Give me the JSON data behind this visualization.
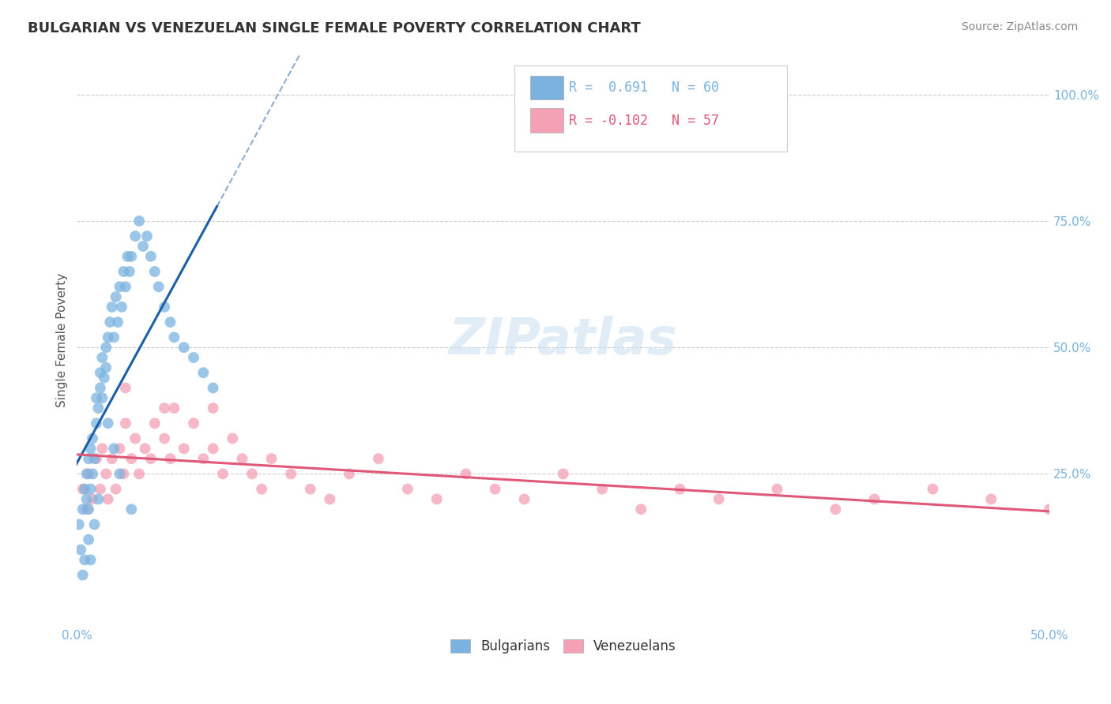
{
  "title": "BULGARIAN VS VENEZUELAN SINGLE FEMALE POVERTY CORRELATION CHART",
  "source": "Source: ZipAtlas.com",
  "ylabel": "Single Female Poverty",
  "xlim": [
    0.0,
    0.5
  ],
  "ylim": [
    -0.05,
    1.08
  ],
  "bg_color": "#ffffff",
  "grid_color": "#cccccc",
  "blue_color": "#7ab3e0",
  "pink_color": "#f4a0b5",
  "blue_line_color": "#1a5fa8",
  "pink_line_color": "#e05878",
  "legend_R1": "R =  0.691",
  "legend_N1": "N = 60",
  "legend_R2": "R = -0.102",
  "legend_N2": "N = 57",
  "bulgarian_points_x": [
    0.001,
    0.002,
    0.003,
    0.004,
    0.005,
    0.005,
    0.006,
    0.006,
    0.007,
    0.007,
    0.008,
    0.008,
    0.009,
    0.01,
    0.01,
    0.011,
    0.012,
    0.012,
    0.013,
    0.013,
    0.014,
    0.015,
    0.015,
    0.016,
    0.017,
    0.018,
    0.019,
    0.02,
    0.021,
    0.022,
    0.023,
    0.024,
    0.025,
    0.026,
    0.027,
    0.028,
    0.03,
    0.032,
    0.034,
    0.036,
    0.038,
    0.04,
    0.042,
    0.045,
    0.048,
    0.05,
    0.055,
    0.06,
    0.065,
    0.07,
    0.003,
    0.004,
    0.006,
    0.007,
    0.009,
    0.011,
    0.016,
    0.019,
    0.022,
    0.028
  ],
  "bulgarian_points_y": [
    0.15,
    0.1,
    0.18,
    0.22,
    0.2,
    0.25,
    0.18,
    0.28,
    0.22,
    0.3,
    0.25,
    0.32,
    0.28,
    0.35,
    0.4,
    0.38,
    0.42,
    0.45,
    0.4,
    0.48,
    0.44,
    0.5,
    0.46,
    0.52,
    0.55,
    0.58,
    0.52,
    0.6,
    0.55,
    0.62,
    0.58,
    0.65,
    0.62,
    0.68,
    0.65,
    0.68,
    0.72,
    0.75,
    0.7,
    0.72,
    0.68,
    0.65,
    0.62,
    0.58,
    0.55,
    0.52,
    0.5,
    0.48,
    0.45,
    0.42,
    0.05,
    0.08,
    0.12,
    0.08,
    0.15,
    0.2,
    0.35,
    0.3,
    0.25,
    0.18
  ],
  "venezuelan_points_x": [
    0.003,
    0.005,
    0.006,
    0.008,
    0.01,
    0.012,
    0.013,
    0.015,
    0.016,
    0.018,
    0.02,
    0.022,
    0.024,
    0.025,
    0.028,
    0.03,
    0.032,
    0.035,
    0.038,
    0.04,
    0.045,
    0.048,
    0.05,
    0.055,
    0.06,
    0.065,
    0.07,
    0.075,
    0.08,
    0.085,
    0.09,
    0.095,
    0.1,
    0.11,
    0.12,
    0.13,
    0.14,
    0.155,
    0.17,
    0.185,
    0.2,
    0.215,
    0.23,
    0.25,
    0.27,
    0.29,
    0.31,
    0.33,
    0.36,
    0.39,
    0.41,
    0.44,
    0.47,
    0.5,
    0.025,
    0.045,
    0.07
  ],
  "venezuelan_points_y": [
    0.22,
    0.18,
    0.25,
    0.2,
    0.28,
    0.22,
    0.3,
    0.25,
    0.2,
    0.28,
    0.22,
    0.3,
    0.25,
    0.35,
    0.28,
    0.32,
    0.25,
    0.3,
    0.28,
    0.35,
    0.32,
    0.28,
    0.38,
    0.3,
    0.35,
    0.28,
    0.3,
    0.25,
    0.32,
    0.28,
    0.25,
    0.22,
    0.28,
    0.25,
    0.22,
    0.2,
    0.25,
    0.28,
    0.22,
    0.2,
    0.25,
    0.22,
    0.2,
    0.25,
    0.22,
    0.18,
    0.22,
    0.2,
    0.22,
    0.18,
    0.2,
    0.22,
    0.2,
    0.18,
    0.42,
    0.38,
    0.38
  ]
}
